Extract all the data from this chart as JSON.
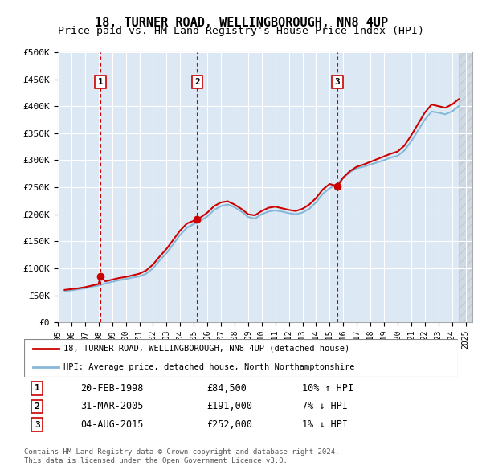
{
  "title": "18, TURNER ROAD, WELLINGBOROUGH, NN8 4UP",
  "subtitle": "Price paid vs. HM Land Registry's House Price Index (HPI)",
  "title_fontsize": 11,
  "subtitle_fontsize": 9.5,
  "ylabel_ticks": [
    "£0",
    "£50K",
    "£100K",
    "£150K",
    "£200K",
    "£250K",
    "£300K",
    "£350K",
    "£400K",
    "£450K",
    "£500K"
  ],
  "ylim": [
    0,
    500000
  ],
  "xlim_start": 1995.0,
  "xlim_end": 2025.5,
  "bg_color": "#dce9f5",
  "plot_bg_color": "#dce9f5",
  "grid_color": "#ffffff",
  "sale_color": "#cc0000",
  "hpi_color": "#87b8d8",
  "sale_marker_color": "#cc0000",
  "sale_box_color": "#cc0000",
  "annotations": [
    {
      "num": 1,
      "date": "20-FEB-1998",
      "price": 84500,
      "x": 1998.13,
      "pct": "10%",
      "dir": "↑"
    },
    {
      "num": 2,
      "date": "31-MAR-2005",
      "price": 191000,
      "x": 2005.25,
      "pct": "7%",
      "dir": "↓"
    },
    {
      "num": 3,
      "date": "04-AUG-2015",
      "price": 252000,
      "x": 2015.58,
      "pct": "1%",
      "dir": "↓"
    }
  ],
  "legend_sale_label": "18, TURNER ROAD, WELLINGBOROUGH, NN8 4UP (detached house)",
  "legend_hpi_label": "HPI: Average price, detached house, North Northamptonshire",
  "footer_line1": "Contains HM Land Registry data © Crown copyright and database right 2024.",
  "footer_line2": "This data is licensed under the Open Government Licence v3.0.",
  "hpi_data": {
    "years": [
      1995.5,
      1996.0,
      1996.5,
      1997.0,
      1997.5,
      1998.0,
      1998.5,
      1999.0,
      1999.5,
      2000.0,
      2000.5,
      2001.0,
      2001.5,
      2002.0,
      2002.5,
      2003.0,
      2003.5,
      2004.0,
      2004.5,
      2005.0,
      2005.5,
      2006.0,
      2006.5,
      2007.0,
      2007.5,
      2008.0,
      2008.5,
      2009.0,
      2009.5,
      2010.0,
      2010.5,
      2011.0,
      2011.5,
      2012.0,
      2012.5,
      2013.0,
      2013.5,
      2014.0,
      2014.5,
      2015.0,
      2015.5,
      2016.0,
      2016.5,
      2017.0,
      2017.5,
      2018.0,
      2018.5,
      2019.0,
      2019.5,
      2020.0,
      2020.5,
      2021.0,
      2021.5,
      2022.0,
      2022.5,
      2023.0,
      2023.5,
      2024.0,
      2024.5
    ],
    "values": [
      58000,
      59000,
      61000,
      63000,
      66000,
      68000,
      72000,
      75000,
      78000,
      80000,
      83000,
      85000,
      90000,
      100000,
      115000,
      128000,
      145000,
      162000,
      175000,
      182000,
      188000,
      196000,
      208000,
      215000,
      218000,
      213000,
      205000,
      195000,
      192000,
      200000,
      205000,
      207000,
      205000,
      202000,
      200000,
      203000,
      210000,
      222000,
      238000,
      248000,
      255000,
      267000,
      278000,
      285000,
      288000,
      292000,
      296000,
      300000,
      305000,
      308000,
      318000,
      335000,
      355000,
      375000,
      390000,
      388000,
      385000,
      390000,
      400000
    ]
  },
  "sale_line_data": {
    "years": [
      1995.5,
      1996.0,
      1996.5,
      1997.0,
      1997.5,
      1998.0,
      1998.13,
      1998.5,
      1999.0,
      1999.5,
      2000.0,
      2000.5,
      2001.0,
      2001.5,
      2002.0,
      2002.5,
      2003.0,
      2003.5,
      2004.0,
      2004.5,
      2005.0,
      2005.25,
      2005.5,
      2006.0,
      2006.5,
      2007.0,
      2007.5,
      2008.0,
      2008.5,
      2009.0,
      2009.5,
      2010.0,
      2010.5,
      2011.0,
      2011.5,
      2012.0,
      2012.5,
      2013.0,
      2013.5,
      2014.0,
      2014.5,
      2015.0,
      2015.58,
      2016.0,
      2016.5,
      2017.0,
      2017.5,
      2018.0,
      2018.5,
      2019.0,
      2019.5,
      2020.0,
      2020.5,
      2021.0,
      2021.5,
      2022.0,
      2022.5,
      2023.0,
      2023.5,
      2024.0,
      2024.5
    ],
    "values": [
      60000,
      61500,
      63000,
      65000,
      68000,
      71000,
      84500,
      76000,
      79000,
      82000,
      84000,
      87000,
      90000,
      96000,
      107000,
      122000,
      136000,
      153000,
      170000,
      183000,
      188000,
      191000,
      194000,
      203000,
      215000,
      222000,
      224000,
      218000,
      210000,
      200000,
      198000,
      206000,
      212000,
      214000,
      211000,
      208000,
      206000,
      210000,
      218000,
      230000,
      246000,
      256000,
      252000,
      268000,
      280000,
      288000,
      292000,
      297000,
      302000,
      307000,
      312000,
      316000,
      327000,
      346000,
      367000,
      388000,
      403000,
      400000,
      397000,
      403000,
      413000
    ]
  }
}
